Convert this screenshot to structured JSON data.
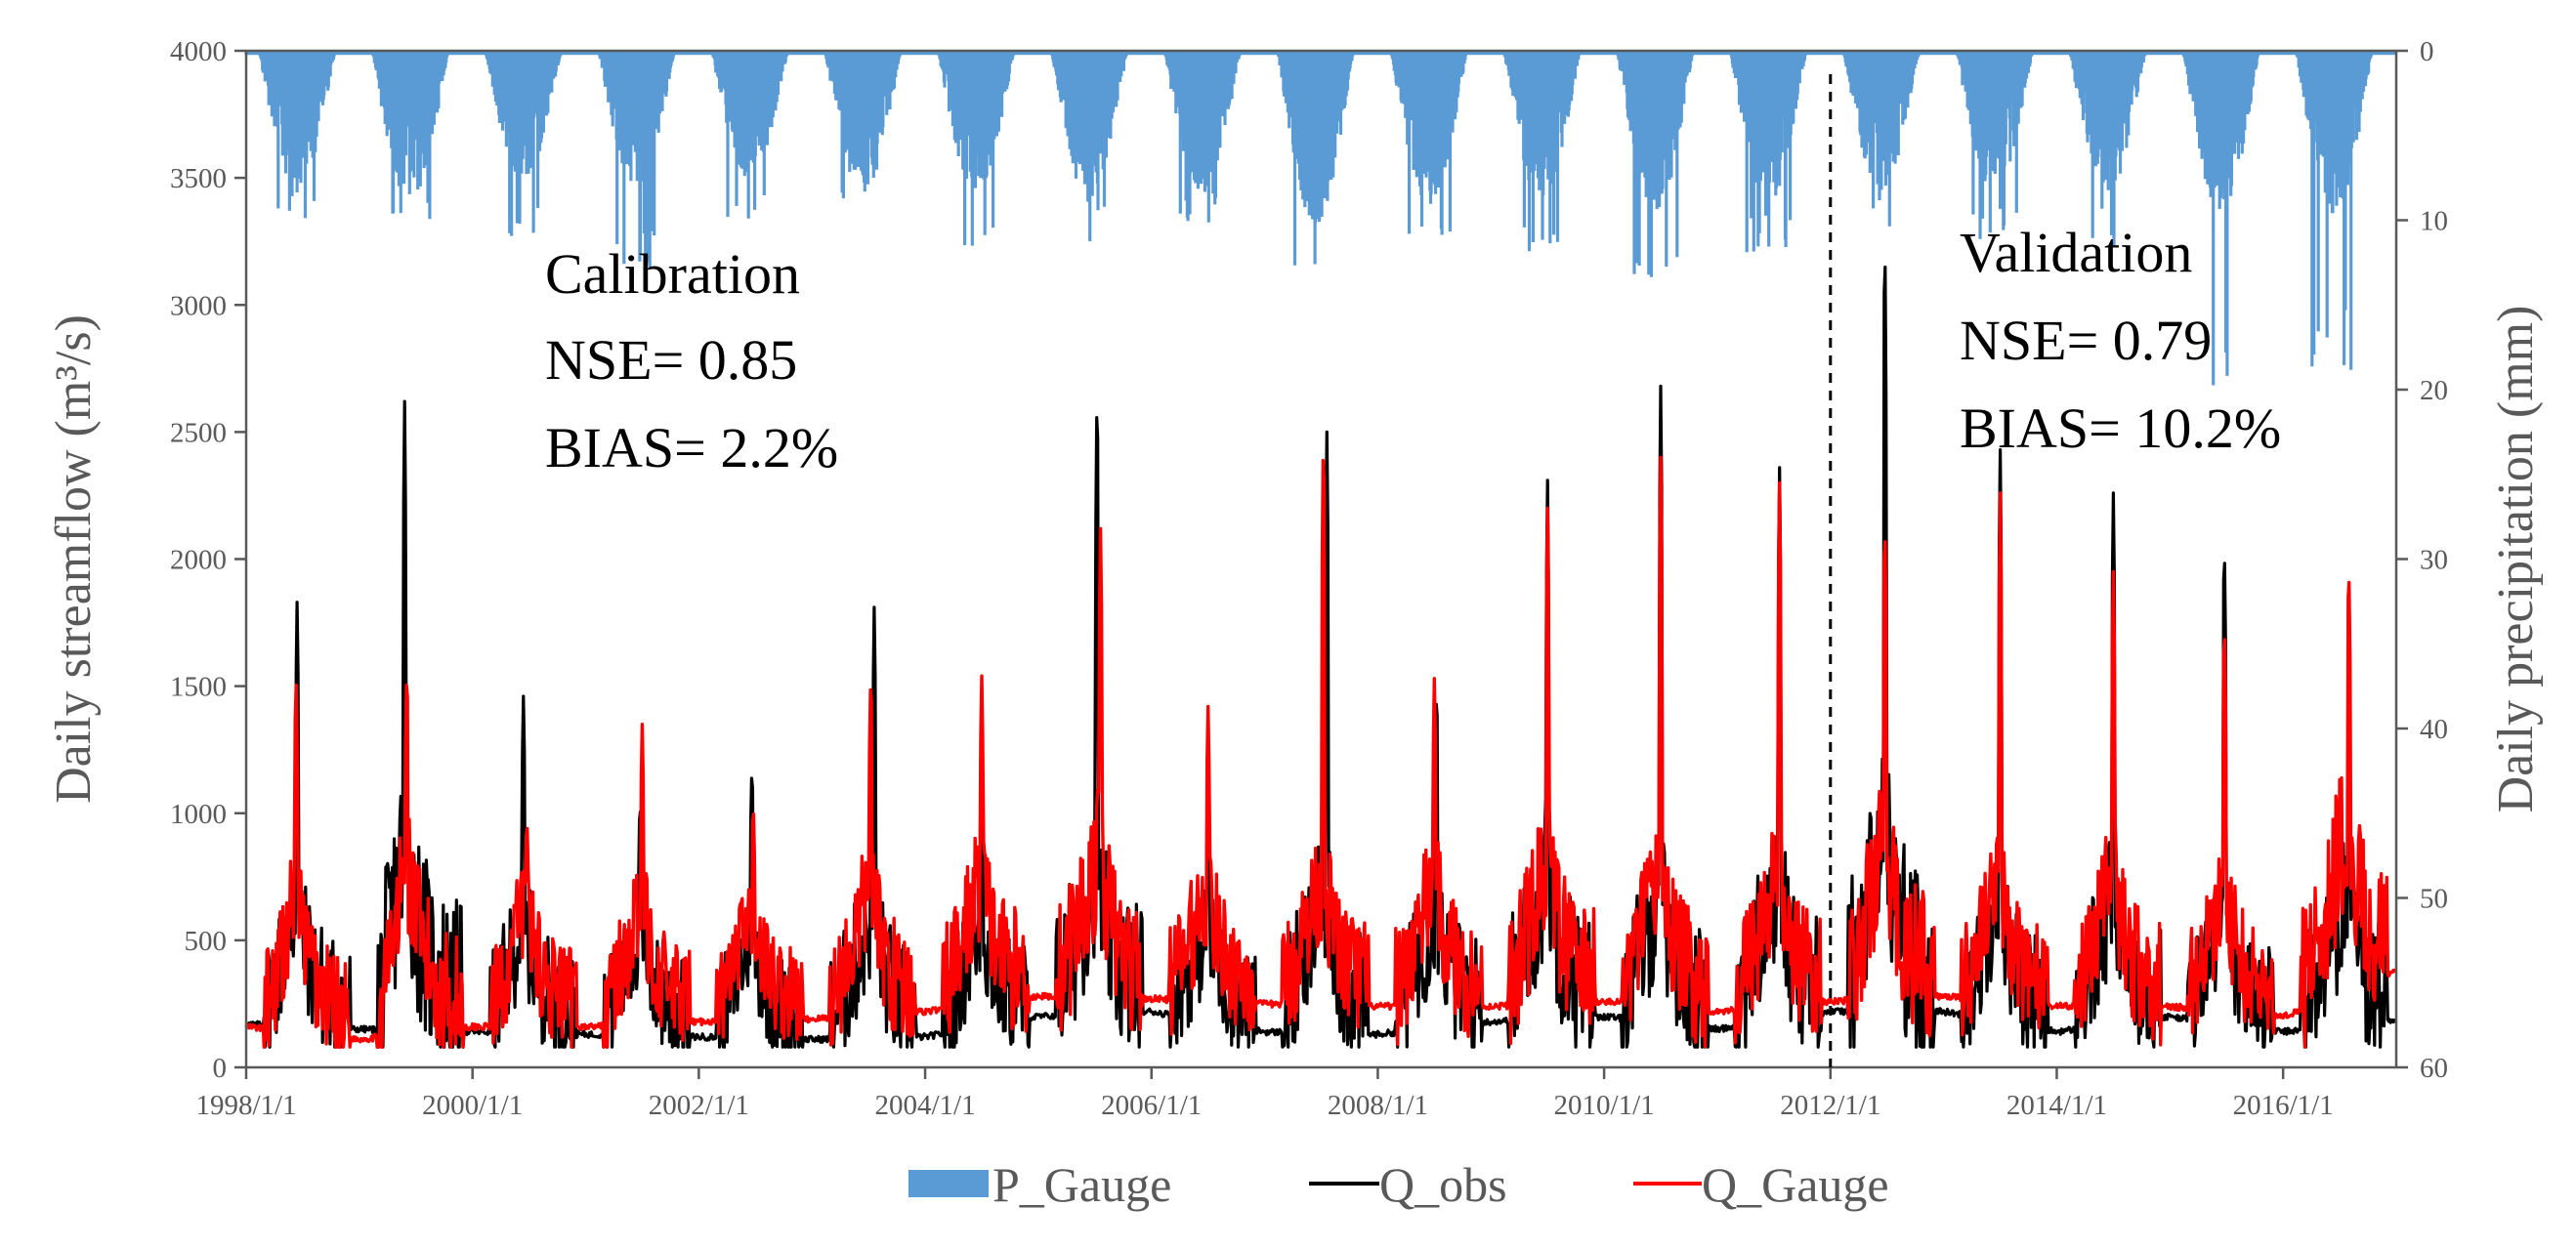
{
  "chart_data": {
    "type": "line",
    "title": "",
    "xlabel": "",
    "ylabel": "Daily streamflow (m³/s)",
    "y2label": "Daily precipitation (mm)",
    "ylim": [
      0,
      4000
    ],
    "y2lim": [
      0,
      60
    ],
    "y2_inverted": true,
    "xlim": [
      1998.0,
      2017.0
    ],
    "x_ticks": [
      1998,
      2000,
      2002,
      2004,
      2006,
      2008,
      2010,
      2012,
      2014,
      2016
    ],
    "x_tick_labels": [
      "1998/1/1",
      "2000/1/1",
      "2002/1/1",
      "2004/1/1",
      "2006/1/1",
      "2008/1/1",
      "2010/1/1",
      "2012/1/1",
      "2014/1/1",
      "2016/1/1"
    ],
    "y_ticks": [
      0,
      500,
      1000,
      1500,
      2000,
      2500,
      3000,
      3500,
      4000
    ],
    "y_tick_labels": [
      "0",
      "500",
      "1000",
      "1500",
      "2000",
      "2500",
      "3000",
      "3500",
      "4000"
    ],
    "y2_ticks": [
      0,
      10,
      20,
      30,
      40,
      50,
      60
    ],
    "y2_tick_labels": [
      "0",
      "10",
      "20",
      "30",
      "40",
      "50",
      "60"
    ],
    "divider_x": 2012.0,
    "annotations": {
      "calibration": {
        "title": "Calibration",
        "nse": "NSE= 0.85",
        "bias": "BIAS= 2.2%"
      },
      "validation": {
        "title": "Validation",
        "nse": "NSE= 0.79",
        "bias": "BIAS= 10.2%"
      }
    },
    "legend": {
      "position": "bottom-center",
      "entries": [
        "P_Gauge",
        "Q_obs",
        "Q_Gauge"
      ]
    },
    "colors": {
      "P_Gauge": "#5b9bd5",
      "Q_obs": "#000000",
      "Q_Gauge": "#ff0000",
      "axis": "#595959"
    },
    "series": [
      {
        "name": "Q_obs",
        "kind": "line",
        "axis": "left",
        "unit": "m3/s",
        "yearly": [
          {
            "year": 1998,
            "base_start": 170,
            "peak_frac": 0.45,
            "peak": 1830,
            "base_end": 150,
            "wet_level": 560
          },
          {
            "year": 1999,
            "base_start": 150,
            "peak_frac": 0.4,
            "peak": 2620,
            "base_end": 140,
            "wet_level": 820
          },
          {
            "year": 2000,
            "base_start": 140,
            "peak_frac": 0.45,
            "peak": 1460,
            "base_end": 130,
            "wet_level": 520
          },
          {
            "year": 2001,
            "base_start": 130,
            "peak_frac": 0.48,
            "peak": 1070,
            "base_end": 120,
            "wet_level": 480
          },
          {
            "year": 2002,
            "base_start": 120,
            "peak_frac": 0.47,
            "peak": 1210,
            "base_end": 110,
            "wet_level": 470
          },
          {
            "year": 2003,
            "base_start": 110,
            "peak_frac": 0.55,
            "peak": 1810,
            "base_end": 120,
            "wet_level": 560
          },
          {
            "year": 2004,
            "base_start": 120,
            "peak_frac": 0.5,
            "peak": 1400,
            "base_end": 200,
            "wet_level": 500
          },
          {
            "year": 2005,
            "base_start": 200,
            "peak_frac": 0.52,
            "peak": 2720,
            "base_end": 220,
            "wet_level": 700
          },
          {
            "year": 2006,
            "base_start": 220,
            "peak_frac": 0.5,
            "peak": 1190,
            "base_end": 140,
            "wet_level": 480
          },
          {
            "year": 2007,
            "base_start": 140,
            "peak_frac": 0.55,
            "peak": 2500,
            "base_end": 130,
            "wet_level": 620
          },
          {
            "year": 2008,
            "base_start": 130,
            "peak_frac": 0.52,
            "peak": 1520,
            "base_end": 180,
            "wet_level": 560
          },
          {
            "year": 2009,
            "base_start": 180,
            "peak_frac": 0.5,
            "peak": 2310,
            "base_end": 200,
            "wet_level": 700
          },
          {
            "year": 2010,
            "base_start": 200,
            "peak_frac": 0.5,
            "peak": 2680,
            "base_end": 150,
            "wet_level": 620
          },
          {
            "year": 2011,
            "base_start": 150,
            "peak_frac": 0.55,
            "peak": 2360,
            "base_end": 220,
            "wet_level": 650
          },
          {
            "year": 2012,
            "base_start": 220,
            "peak_frac": 0.48,
            "peak": 3350,
            "base_end": 220,
            "wet_level": 850
          },
          {
            "year": 2013,
            "base_start": 220,
            "peak_frac": 0.5,
            "peak": 2430,
            "base_end": 140,
            "wet_level": 560
          },
          {
            "year": 2014,
            "base_start": 140,
            "peak_frac": 0.5,
            "peak": 2260,
            "base_end": 200,
            "wet_level": 600
          },
          {
            "year": 2015,
            "base_start": 200,
            "peak_frac": 0.48,
            "peak": 2110,
            "base_end": 140,
            "wet_level": 520
          },
          {
            "year": 2016,
            "base_start": 140,
            "peak_frac": 0.58,
            "peak": 1200,
            "base_end": 180,
            "wet_level": 620
          }
        ]
      },
      {
        "name": "Q_Gauge",
        "kind": "line",
        "axis": "left",
        "unit": "m3/s",
        "yearly": [
          {
            "year": 1998,
            "base_start": 160,
            "peak_frac": 0.44,
            "peak": 1550,
            "base_end": 110,
            "wet_level": 640
          },
          {
            "year": 1999,
            "base_start": 110,
            "peak_frac": 0.42,
            "peak": 1600,
            "base_end": 160,
            "wet_level": 760
          },
          {
            "year": 2000,
            "base_start": 160,
            "peak_frac": 0.48,
            "peak": 1000,
            "base_end": 160,
            "wet_level": 620
          },
          {
            "year": 2001,
            "base_start": 160,
            "peak_frac": 0.5,
            "peak": 1350,
            "base_end": 180,
            "wet_level": 600
          },
          {
            "year": 2002,
            "base_start": 180,
            "peak_frac": 0.48,
            "peak": 1060,
            "base_end": 190,
            "wet_level": 560
          },
          {
            "year": 2003,
            "base_start": 190,
            "peak_frac": 0.52,
            "peak": 1580,
            "base_end": 220,
            "wet_level": 660
          },
          {
            "year": 2004,
            "base_start": 220,
            "peak_frac": 0.5,
            "peak": 1540,
            "base_end": 280,
            "wet_level": 700
          },
          {
            "year": 2005,
            "base_start": 280,
            "peak_frac": 0.55,
            "peak": 2120,
            "base_end": 270,
            "wet_level": 780
          },
          {
            "year": 2006,
            "base_start": 270,
            "peak_frac": 0.5,
            "peak": 1420,
            "base_end": 250,
            "wet_level": 640
          },
          {
            "year": 2007,
            "base_start": 250,
            "peak_frac": 0.52,
            "peak": 2540,
            "base_end": 240,
            "wet_level": 700
          },
          {
            "year": 2008,
            "base_start": 240,
            "peak_frac": 0.5,
            "peak": 1530,
            "base_end": 240,
            "wet_level": 680
          },
          {
            "year": 2009,
            "base_start": 240,
            "peak_frac": 0.5,
            "peak": 2200,
            "base_end": 260,
            "wet_level": 760
          },
          {
            "year": 2010,
            "base_start": 260,
            "peak_frac": 0.5,
            "peak": 2400,
            "base_end": 220,
            "wet_level": 720
          },
          {
            "year": 2011,
            "base_start": 220,
            "peak_frac": 0.55,
            "peak": 2300,
            "base_end": 260,
            "wet_level": 700
          },
          {
            "year": 2012,
            "base_start": 260,
            "peak_frac": 0.48,
            "peak": 2200,
            "base_end": 280,
            "wet_level": 820
          },
          {
            "year": 2013,
            "base_start": 280,
            "peak_frac": 0.5,
            "peak": 2260,
            "base_end": 240,
            "wet_level": 660
          },
          {
            "year": 2014,
            "base_start": 240,
            "peak_frac": 0.5,
            "peak": 1950,
            "base_end": 240,
            "wet_level": 700
          },
          {
            "year": 2015,
            "base_start": 240,
            "peak_frac": 0.48,
            "peak": 1790,
            "base_end": 200,
            "wet_level": 640
          },
          {
            "year": 2016,
            "base_start": 200,
            "peak_frac": 0.58,
            "peak": 2030,
            "base_end": 380,
            "wet_level": 900
          }
        ]
      },
      {
        "name": "P_Gauge",
        "kind": "bar",
        "axis": "right",
        "unit": "mm",
        "yearly": [
          {
            "year": 1998,
            "wet_depth": 6.5,
            "max": 10.5
          },
          {
            "year": 1999,
            "wet_depth": 7.0,
            "max": 10.0
          },
          {
            "year": 2000,
            "wet_depth": 6.0,
            "max": 11.0
          },
          {
            "year": 2001,
            "wet_depth": 6.5,
            "max": 13.0
          },
          {
            "year": 2002,
            "wet_depth": 6.0,
            "max": 10.0
          },
          {
            "year": 2003,
            "wet_depth": 6.5,
            "max": 10.0
          },
          {
            "year": 2004,
            "wet_depth": 6.5,
            "max": 12.0
          },
          {
            "year": 2005,
            "wet_depth": 7.0,
            "max": 11.5
          },
          {
            "year": 2006,
            "wet_depth": 6.5,
            "max": 10.5
          },
          {
            "year": 2007,
            "wet_depth": 8.0,
            "max": 14.0
          },
          {
            "year": 2008,
            "wet_depth": 7.0,
            "max": 11.0
          },
          {
            "year": 2009,
            "wet_depth": 7.0,
            "max": 12.5
          },
          {
            "year": 2010,
            "wet_depth": 7.5,
            "max": 14.5
          },
          {
            "year": 2011,
            "wet_depth": 7.0,
            "max": 12.0
          },
          {
            "year": 2012,
            "wet_depth": 6.5,
            "max": 10.5
          },
          {
            "year": 2013,
            "wet_depth": 6.5,
            "max": 11.5
          },
          {
            "year": 2014,
            "wet_depth": 6.5,
            "max": 11.5
          },
          {
            "year": 2015,
            "wet_depth": 7.5,
            "max": 21.0
          },
          {
            "year": 2016,
            "wet_depth": 7.5,
            "max": 19.0
          }
        ]
      }
    ]
  }
}
